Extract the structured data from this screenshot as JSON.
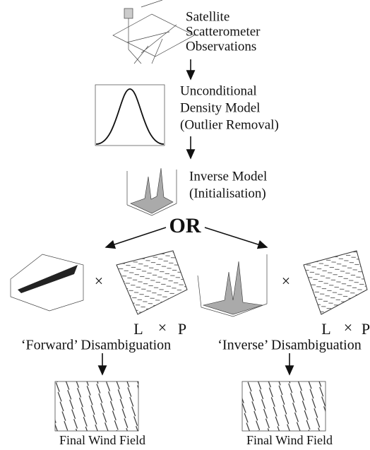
{
  "steps": [
    {
      "lines": [
        "Satellite",
        "Scatterometer",
        "Observations"
      ]
    },
    {
      "lines": [
        "Unconditional",
        "Density Model",
        "(Outlier Removal)"
      ]
    },
    {
      "lines": [
        "Inverse Model",
        "(Initialisation)"
      ]
    }
  ],
  "branch_label": "OR",
  "branches": [
    {
      "operator": "×",
      "likelihood": "L",
      "product_operator": "×",
      "prior": "P",
      "label": "‘Forward’ Disambiguation",
      "result": "Final Wind Field"
    },
    {
      "operator": "×",
      "likelihood": "L",
      "product_operator": "×",
      "prior": "P",
      "label": "‘Inverse’ Disambiguation",
      "result": "Final Wind Field"
    }
  ]
}
